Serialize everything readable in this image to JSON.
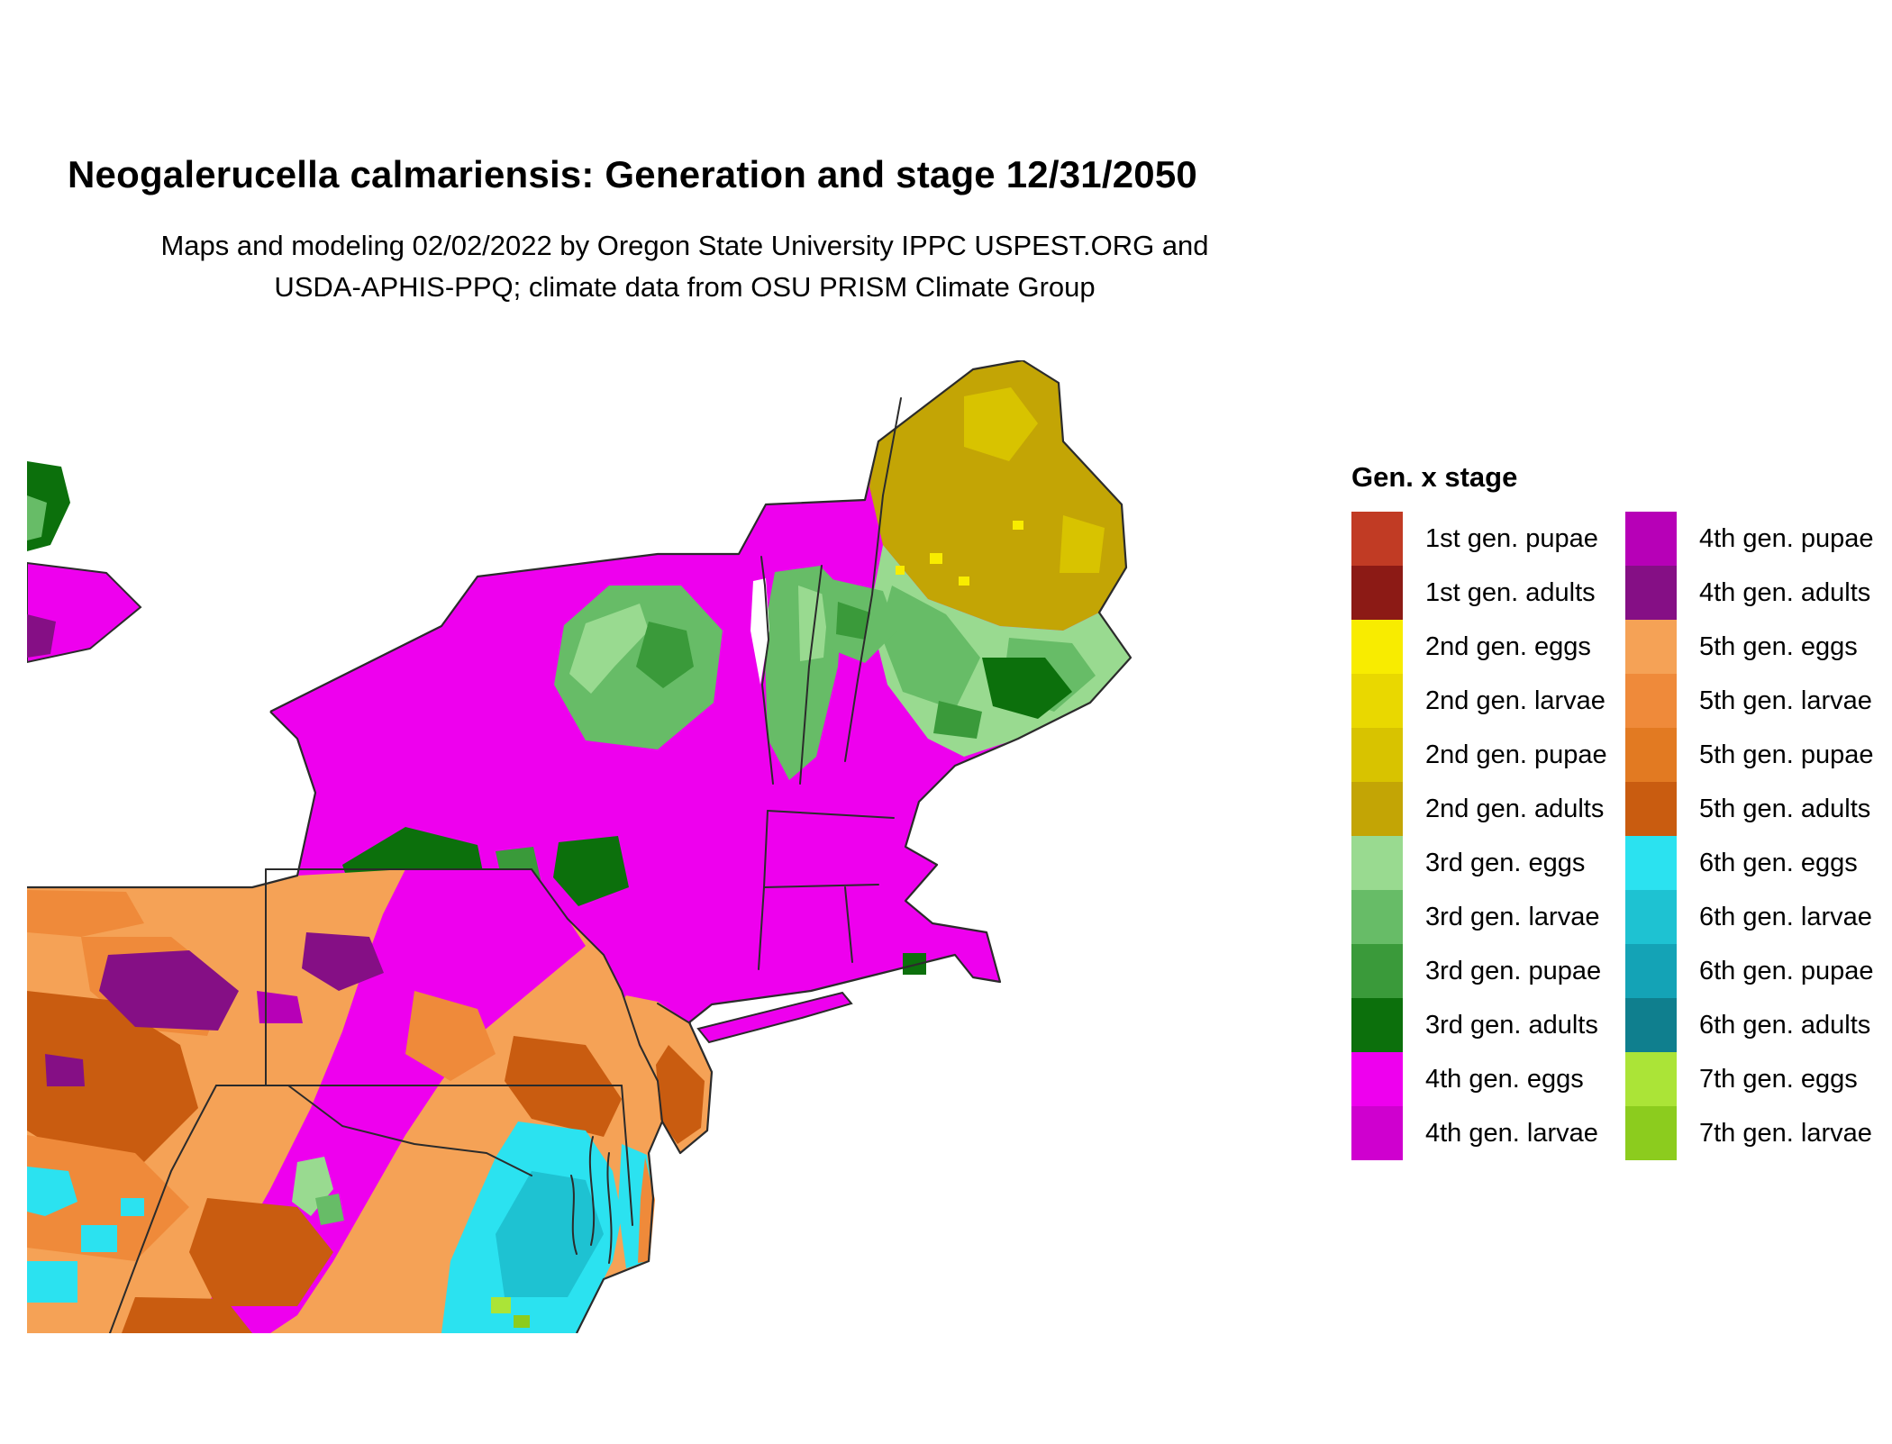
{
  "title": "Neogalerucella calmariensis: Generation and stage 12/31/2050",
  "subtitle": [
    "Maps and modeling 02/02/2022 by Oregon State University IPPC USPEST.ORG and",
    "USDA-APHIS-PPQ; climate data from OSU PRISM Climate Group"
  ],
  "legend": {
    "title": "Gen. x stage",
    "columns": [
      [
        {
          "label": "1st gen. pupae",
          "color": "gen1_pupae"
        },
        {
          "label": "1st gen. adults",
          "color": "gen1_adults"
        },
        {
          "label": "2nd gen. eggs",
          "color": "gen2_eggs"
        },
        {
          "label": "2nd gen. larvae",
          "color": "gen2_larvae"
        },
        {
          "label": "2nd gen. pupae",
          "color": "gen2_pupae"
        },
        {
          "label": "2nd gen. adults",
          "color": "gen2_adults"
        },
        {
          "label": "3rd gen. eggs",
          "color": "gen3_eggs"
        },
        {
          "label": "3rd gen. larvae",
          "color": "gen3_larvae"
        },
        {
          "label": "3rd gen. pupae",
          "color": "gen3_pupae"
        },
        {
          "label": "3rd gen. adults",
          "color": "gen3_adults"
        },
        {
          "label": "4th gen. eggs",
          "color": "gen4_eggs"
        },
        {
          "label": "4th gen. larvae",
          "color": "gen4_larvae"
        }
      ],
      [
        {
          "label": "4th gen. pupae",
          "color": "gen4_pupae"
        },
        {
          "label": "4th gen. adults",
          "color": "gen4_adults"
        },
        {
          "label": "5th gen. eggs",
          "color": "gen5_eggs"
        },
        {
          "label": "5th gen. larvae",
          "color": "gen5_larvae"
        },
        {
          "label": "5th gen. pupae",
          "color": "gen5_pupae"
        },
        {
          "label": "5th gen. adults",
          "color": "gen5_adults"
        },
        {
          "label": "6th gen. eggs",
          "color": "gen6_eggs"
        },
        {
          "label": "6th gen. larvae",
          "color": "gen6_larvae"
        },
        {
          "label": "6th gen. pupae",
          "color": "gen6_pupae"
        },
        {
          "label": "6th gen. adults",
          "color": "gen6_adults"
        },
        {
          "label": "7th gen. eggs",
          "color": "gen7_eggs"
        },
        {
          "label": "7th gen. larvae",
          "color": "gen7_larvae"
        }
      ]
    ]
  },
  "palette": {
    "gen1_pupae": "#c13b24",
    "gen1_adults": "#8c1a15",
    "gen2_eggs": "#f8ec00",
    "gen2_larvae": "#e9d800",
    "gen2_pupae": "#d8c300",
    "gen2_adults": "#c3a505",
    "gen3_eggs": "#99da90",
    "gen3_larvae": "#67bc67",
    "gen3_pupae": "#3a9a3a",
    "gen3_adults": "#0c700c",
    "gen4_eggs": "#ee00ee",
    "gen4_larvae": "#cf00cf",
    "gen4_pupae": "#b700b7",
    "gen4_adults": "#850f85",
    "gen5_eggs": "#f5a256",
    "gen5_larvae": "#ef8a3a",
    "gen5_pupae": "#e27a22",
    "gen5_adults": "#c95c10",
    "gen6_eggs": "#2be2f0",
    "gen6_larvae": "#1ec2d2",
    "gen6_pupae": "#14a3b6",
    "gen6_adults": "#0f7f8e",
    "gen7_eggs": "#abe437",
    "gen7_larvae": "#8ccc1e",
    "water": "#ffffff"
  }
}
